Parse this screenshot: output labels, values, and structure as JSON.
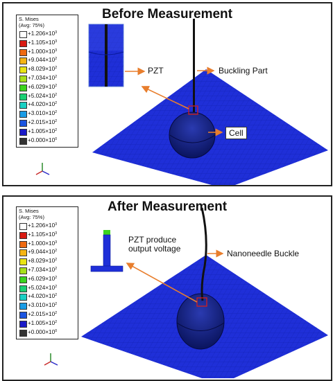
{
  "colors": {
    "mesh": "#1f2fd8",
    "mesh_line": "#0a1a9a",
    "cell": "#0f1f8a",
    "arrow": "#e87e2d",
    "box": "#d21f1f"
  },
  "legend": {
    "title_line1": "S. Mises",
    "title_line2": "(Avg: 75%)",
    "entries": [
      {
        "mant": "+1.206×10",
        "exp": "3",
        "color": "#ffffff"
      },
      {
        "mant": "+1.105×10",
        "exp": "3",
        "color": "#d81a12"
      },
      {
        "mant": "+1.000×10",
        "exp": "3",
        "color": "#ee6a12"
      },
      {
        "mant": "+9.044×10",
        "exp": "2",
        "color": "#f5b414"
      },
      {
        "mant": "+8.029×10",
        "exp": "2",
        "color": "#e9e414"
      },
      {
        "mant": "+7.034×10",
        "exp": "2",
        "color": "#a6e01a"
      },
      {
        "mant": "+6.029×10",
        "exp": "2",
        "color": "#3cd41e"
      },
      {
        "mant": "+5.024×10",
        "exp": "2",
        "color": "#1ad074"
      },
      {
        "mant": "+4.020×10",
        "exp": "2",
        "color": "#1ad0c4"
      },
      {
        "mant": "+3.010×10",
        "exp": "2",
        "color": "#1a9ce6"
      },
      {
        "mant": "+2.015×10",
        "exp": "2",
        "color": "#1a54e0"
      },
      {
        "mant": "+1.005×10",
        "exp": "2",
        "color": "#1a1ac8"
      },
      {
        "mant": "+0.000×10",
        "exp": "0",
        "color": "#333333"
      }
    ]
  },
  "panel_before": {
    "title": "Before Measurement",
    "label_pzt": "PZT",
    "label_buckling": "Buckling Part",
    "label_cell": "Cell"
  },
  "panel_after": {
    "title": "After Measurement",
    "label_pzt_line1": "PZT produce",
    "label_pzt_line2": "output voltage",
    "label_buckle": "Nanoneedle Buckle"
  }
}
